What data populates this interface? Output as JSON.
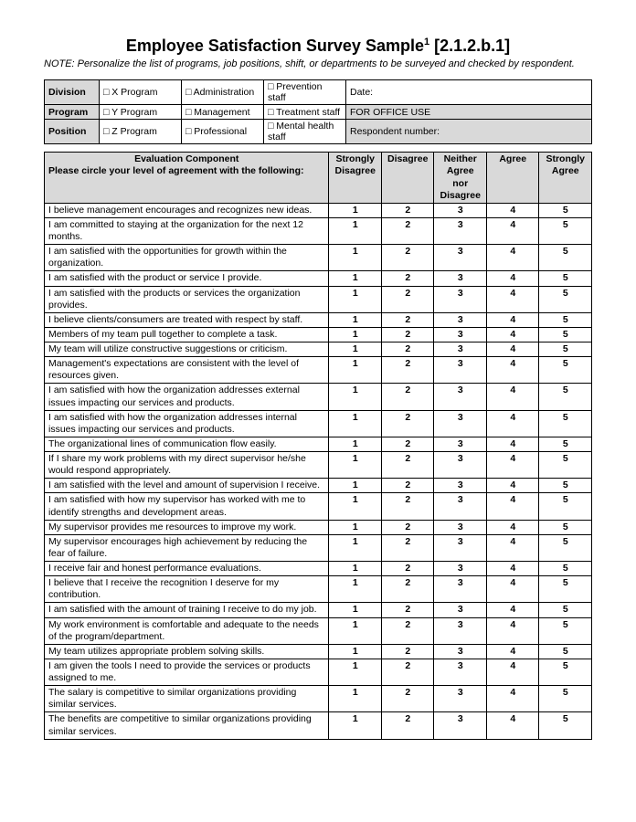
{
  "title_pre": "Employee Satisfaction Survey Sample",
  "title_sup": "1",
  "title_post": " [2.1.2.b.1]",
  "note": "NOTE: Personalize the list of programs, job positions, shift, or departments to be surveyed and checked by respondent.",
  "header": {
    "labels": [
      "Division",
      "Program",
      "Position"
    ],
    "cols": [
      [
        "X Program",
        "Y Program",
        "Z Program"
      ],
      [
        "Administration",
        "Management",
        "Professional"
      ],
      [
        "Prevention staff",
        "Treatment staff",
        "Mental health staff"
      ]
    ],
    "right": [
      "Date:",
      "FOR OFFICE USE",
      "Respondent number:"
    ]
  },
  "eval_header_line1": "Evaluation Component",
  "eval_header_line2": "Please circle your level of agreement with the following:",
  "scale_headers": [
    "Strongly Disagree",
    "Disagree",
    "Neither Agree nor Disagree",
    "Agree",
    "Strongly Agree"
  ],
  "scale_values": [
    "1",
    "2",
    "3",
    "4",
    "5"
  ],
  "questions": [
    "I believe management encourages and recognizes new ideas.",
    "I am committed to staying at the organization for the next 12 months.",
    "I am satisfied with the opportunities for growth within the organization.",
    "I am satisfied with the product or service I provide.",
    "I am satisfied with the products or services the organization provides.",
    "I believe clients/consumers are treated with respect by staff.",
    "Members of my team pull together to complete a task.",
    "My team will utilize constructive suggestions or criticism.",
    "Management's expectations are consistent with the level of resources given.",
    "I am satisfied with how the organization addresses external issues impacting our services and products.",
    "I am satisfied with how the organization addresses internal issues impacting our services and products.",
    "The organizational lines of communication flow easily.",
    "If I share my work problems with my direct supervisor he/she would respond appropriately.",
    "I am satisfied with the level and amount of supervision I receive.",
    "I am satisfied with how my supervisor has worked with me to identify strengths and development areas.",
    "My supervisor provides me resources to improve my work.",
    "My supervisor encourages high achievement by reducing the fear of failure.",
    "I receive fair and honest performance evaluations.",
    "I believe that I receive the recognition I deserve for my contribution.",
    "I am satisfied with the amount of training I receive to do my job.",
    "My work environment is comfortable and adequate to the needs of the program/department.",
    "My team utilizes appropriate problem solving skills.",
    "I am given the tools I need to provide the services or products assigned to me.",
    "The salary is competitive to similar organizations providing similar services.",
    "The benefits are competitive to similar organizations providing similar services."
  ]
}
